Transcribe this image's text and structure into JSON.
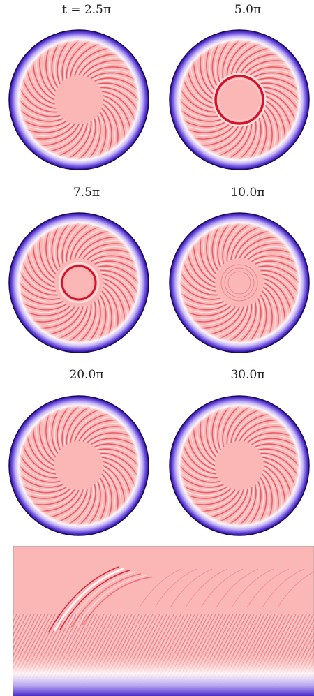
{
  "panels": [
    {
      "label": "t = 2.5π",
      "ring": "none"
    },
    {
      "label": "5.0π",
      "ring": "large"
    },
    {
      "label": "7.5π",
      "ring": "medium"
    },
    {
      "label": "10.0π",
      "ring": "faint"
    },
    {
      "label": "20.0π",
      "ring": "none"
    },
    {
      "label": "30.0π",
      "ring": "none"
    }
  ],
  "colors": {
    "background_fill": "#fbb6b6",
    "crest": "#d4142a",
    "trough": "#ffffff",
    "boundary_dark": "#2a0a8f",
    "boundary_light": "#c8b8f5"
  }
}
